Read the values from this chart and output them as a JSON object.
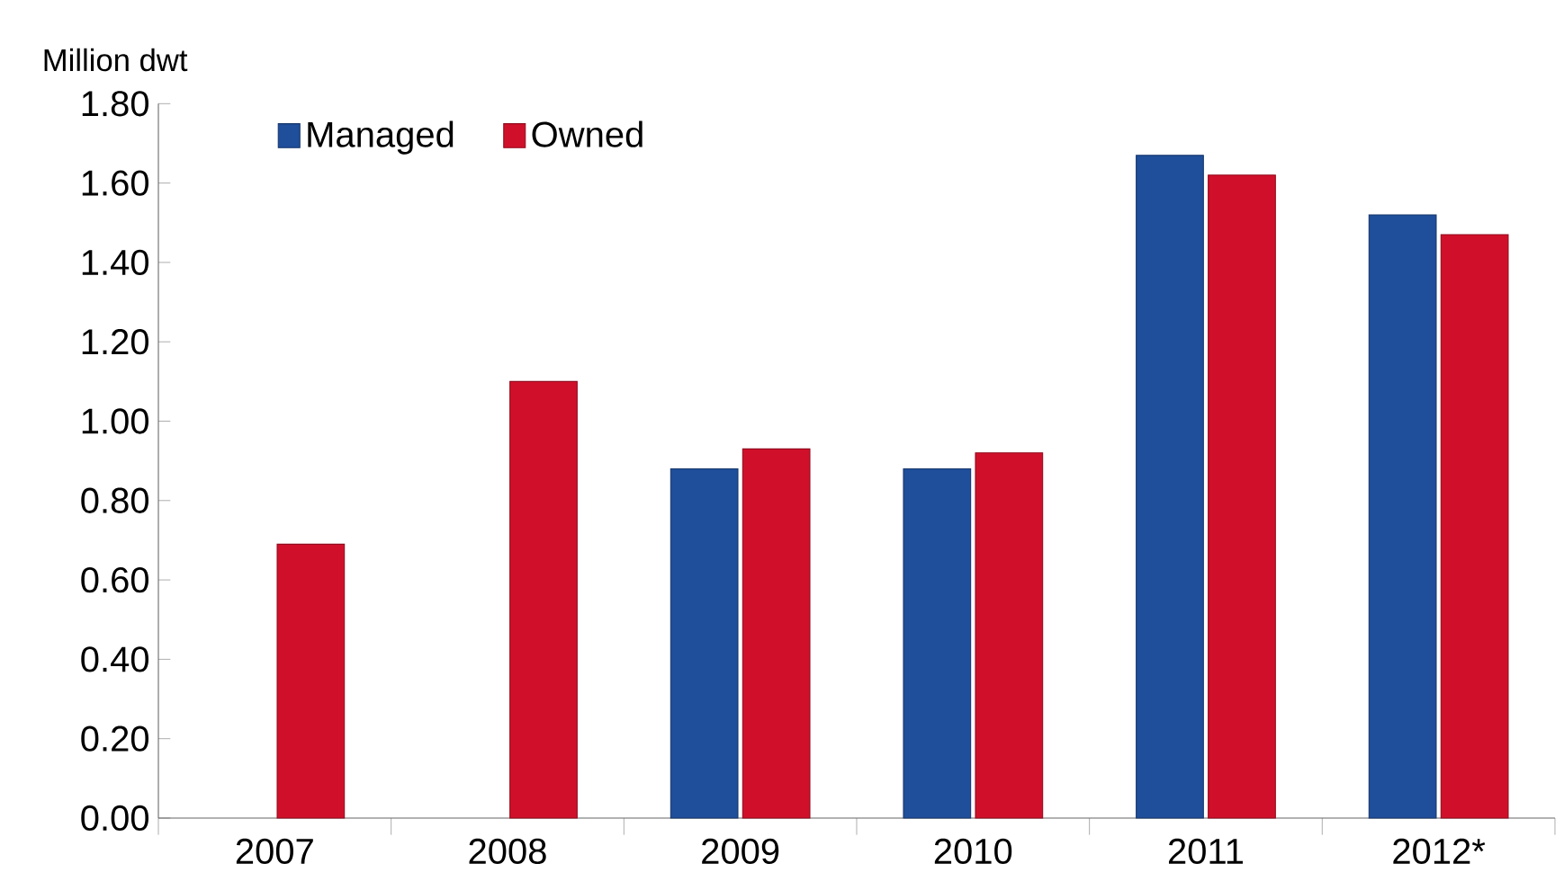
{
  "chart_data": {
    "type": "bar",
    "ylabel": "Million dwt",
    "categories": [
      "2007",
      "2008",
      "2009",
      "2010",
      "2011",
      "2012*"
    ],
    "series": [
      {
        "name": "Managed",
        "color": "#1f4e9a",
        "values": [
          null,
          null,
          0.88,
          0.88,
          1.67,
          1.52
        ]
      },
      {
        "name": "Owned",
        "color": "#d0102a",
        "values": [
          0.69,
          1.1,
          0.93,
          0.92,
          1.62,
          1.47
        ]
      }
    ],
    "ylim": [
      0,
      1.8
    ],
    "yticks": [
      {
        "value": 0,
        "label": "0.00"
      },
      {
        "value": 0.2,
        "label": "0.20"
      },
      {
        "value": 0.4,
        "label": "0.40"
      },
      {
        "value": 0.6,
        "label": "0.60"
      },
      {
        "value": 0.8,
        "label": "0.80"
      },
      {
        "value": 1.0,
        "label": "1.00"
      },
      {
        "value": 1.2,
        "label": "1.20"
      },
      {
        "value": 1.4,
        "label": "1.40"
      },
      {
        "value": 1.6,
        "label": "1.60"
      },
      {
        "value": 1.8,
        "label": "1.80"
      }
    ],
    "grid": false,
    "legend": "top left"
  }
}
